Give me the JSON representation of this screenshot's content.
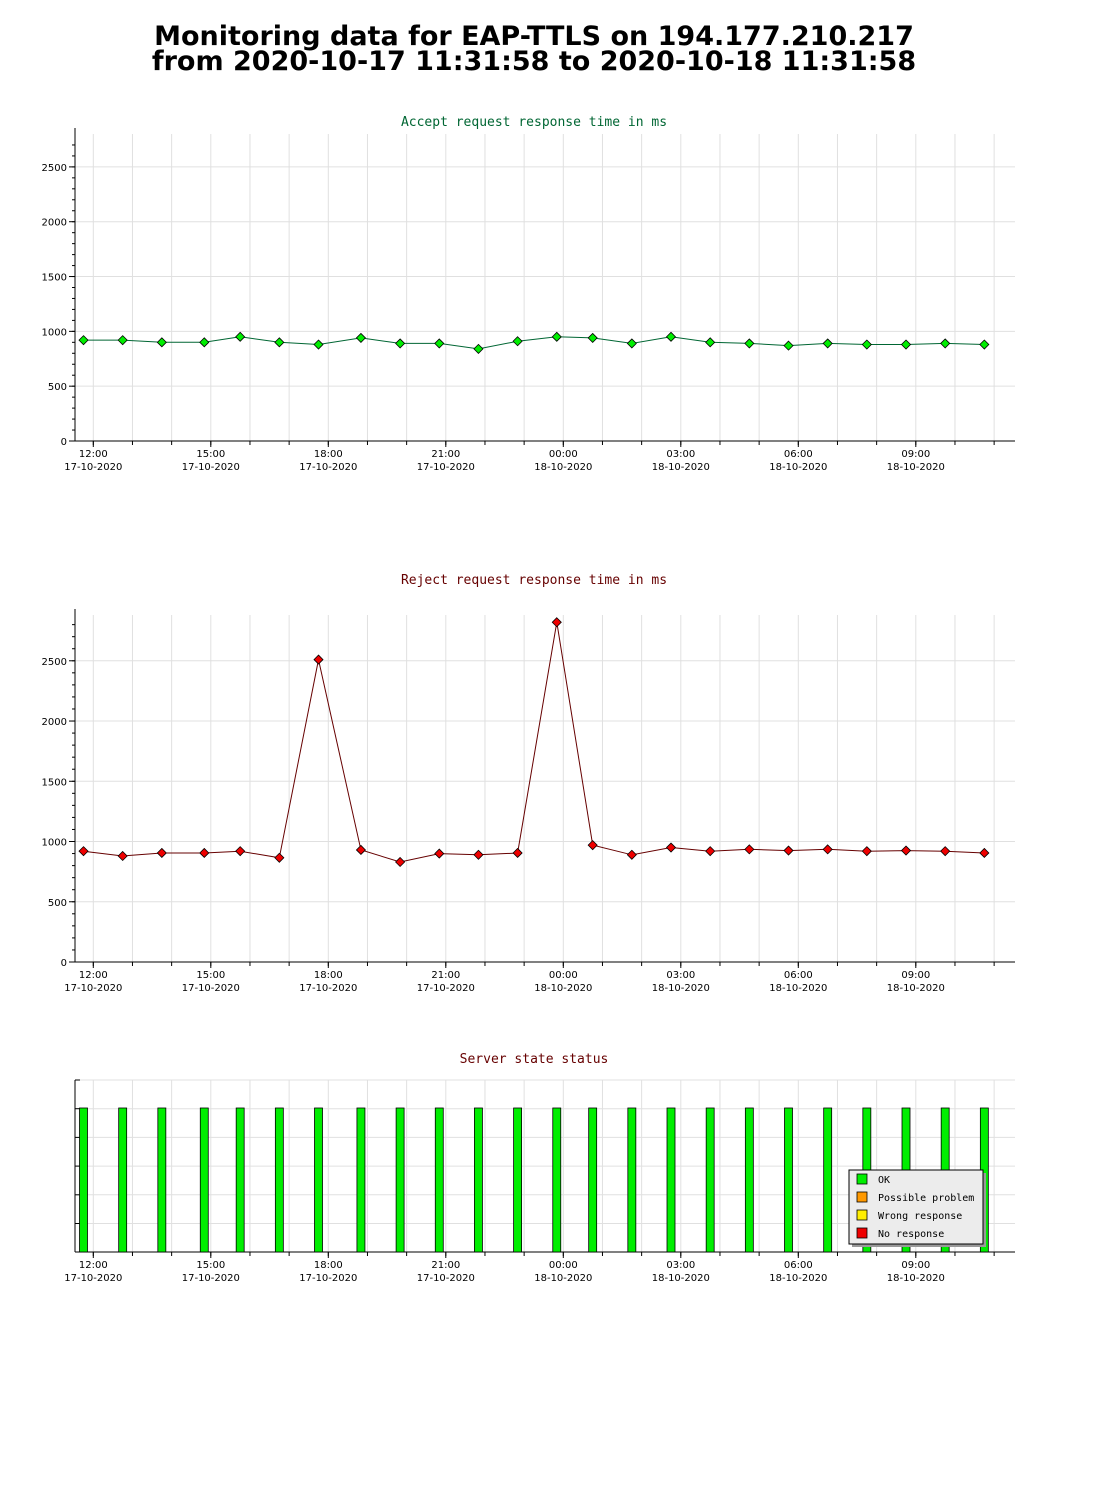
{
  "page": {
    "title_line1": "Monitoring data for EAP-TTLS on 194.177.210.217",
    "title_line2": "from 2020-10-17 11:31:58 to 2020-10-18 11:31:58"
  },
  "colors": {
    "accept_title": "#006633",
    "reject_title": "#660000",
    "status_title": "#660000",
    "accept_line": "#006633",
    "accept_marker": "#00ee00",
    "reject_line": "#660000",
    "reject_marker": "#ee0000",
    "ok": "#00ee00",
    "possible_problem": "#ff9900",
    "wrong_response": "#ffee00",
    "no_response": "#ee0000",
    "grid": "#e0e0e0"
  },
  "chart_data": [
    {
      "type": "line",
      "title": "Accept request response time in ms",
      "x_axis": "time",
      "x_start": "2020-10-17 11:31:58",
      "x_end": "2020-10-18 11:31:58",
      "ylim": [
        0,
        2800
      ],
      "yticks": [
        0,
        500,
        1000,
        1500,
        2000,
        2500
      ],
      "xticks": [
        {
          "time": "12:00",
          "date": "17-10-2020"
        },
        {
          "time": "15:00",
          "date": "17-10-2020"
        },
        {
          "time": "18:00",
          "date": "17-10-2020"
        },
        {
          "time": "21:00",
          "date": "17-10-2020"
        },
        {
          "time": "00:00",
          "date": "18-10-2020"
        },
        {
          "time": "03:00",
          "date": "18-10-2020"
        },
        {
          "time": "06:00",
          "date": "18-10-2020"
        },
        {
          "time": "09:00",
          "date": "18-10-2020"
        }
      ],
      "grid": true,
      "series": [
        {
          "x": [
            "2020-10-17 11:45",
            "2020-10-17 12:45",
            "2020-10-17 13:45",
            "2020-10-17 14:50",
            "2020-10-17 15:45",
            "2020-10-17 16:45",
            "2020-10-17 17:45",
            "2020-10-17 18:50",
            "2020-10-17 19:50",
            "2020-10-17 20:50",
            "2020-10-17 21:50",
            "2020-10-17 22:50",
            "2020-10-17 23:50",
            "2020-10-18 00:45",
            "2020-10-18 01:45",
            "2020-10-18 02:45",
            "2020-10-18 03:45",
            "2020-10-18 04:45",
            "2020-10-18 05:45",
            "2020-10-18 06:45",
            "2020-10-18 07:45",
            "2020-10-18 08:45",
            "2020-10-18 09:45",
            "2020-10-18 10:45"
          ],
          "values": [
            920,
            920,
            900,
            900,
            950,
            900,
            880,
            940,
            890,
            890,
            840,
            910,
            950,
            940,
            890,
            950,
            900,
            890,
            870,
            890,
            880,
            880,
            890,
            880
          ]
        }
      ]
    },
    {
      "type": "line",
      "title": "Reject request response time in ms",
      "x_axis": "time",
      "x_start": "2020-10-17 11:31:58",
      "x_end": "2020-10-18 11:31:58",
      "ylim": [
        0,
        2880
      ],
      "yticks": [
        0,
        500,
        1000,
        1500,
        2000,
        2500
      ],
      "xticks": [
        {
          "time": "12:00",
          "date": "17-10-2020"
        },
        {
          "time": "15:00",
          "date": "17-10-2020"
        },
        {
          "time": "18:00",
          "date": "17-10-2020"
        },
        {
          "time": "21:00",
          "date": "17-10-2020"
        },
        {
          "time": "00:00",
          "date": "18-10-2020"
        },
        {
          "time": "03:00",
          "date": "18-10-2020"
        },
        {
          "time": "06:00",
          "date": "18-10-2020"
        },
        {
          "time": "09:00",
          "date": "18-10-2020"
        }
      ],
      "grid": true,
      "series": [
        {
          "x": [
            "2020-10-17 11:45",
            "2020-10-17 12:45",
            "2020-10-17 13:45",
            "2020-10-17 14:50",
            "2020-10-17 15:45",
            "2020-10-17 16:45",
            "2020-10-17 17:45",
            "2020-10-17 18:50",
            "2020-10-17 19:50",
            "2020-10-17 20:50",
            "2020-10-17 21:50",
            "2020-10-17 22:50",
            "2020-10-17 23:50",
            "2020-10-18 00:45",
            "2020-10-18 01:45",
            "2020-10-18 02:45",
            "2020-10-18 03:45",
            "2020-10-18 04:45",
            "2020-10-18 05:45",
            "2020-10-18 06:45",
            "2020-10-18 07:45",
            "2020-10-18 08:45",
            "2020-10-18 09:45",
            "2020-10-18 10:45"
          ],
          "values": [
            920,
            880,
            905,
            905,
            920,
            865,
            2510,
            930,
            830,
            900,
            890,
            905,
            2820,
            970,
            890,
            950,
            920,
            935,
            925,
            935,
            920,
            925,
            920,
            905
          ]
        }
      ]
    },
    {
      "type": "bar",
      "title": "Server state status",
      "x_axis": "time",
      "x_start": "2020-10-17 11:31:58",
      "x_end": "2020-10-18 11:31:58",
      "xticks": [
        {
          "time": "12:00",
          "date": "17-10-2020"
        },
        {
          "time": "15:00",
          "date": "17-10-2020"
        },
        {
          "time": "18:00",
          "date": "17-10-2020"
        },
        {
          "time": "21:00",
          "date": "17-10-2020"
        },
        {
          "time": "00:00",
          "date": "18-10-2020"
        },
        {
          "time": "03:00",
          "date": "18-10-2020"
        },
        {
          "time": "06:00",
          "date": "18-10-2020"
        },
        {
          "time": "09:00",
          "date": "18-10-2020"
        }
      ],
      "x": [
        "2020-10-17 11:45",
        "2020-10-17 12:45",
        "2020-10-17 13:45",
        "2020-10-17 14:50",
        "2020-10-17 15:45",
        "2020-10-17 16:45",
        "2020-10-17 17:45",
        "2020-10-17 18:50",
        "2020-10-17 19:50",
        "2020-10-17 20:50",
        "2020-10-17 21:50",
        "2020-10-17 22:50",
        "2020-10-17 23:50",
        "2020-10-18 00:45",
        "2020-10-18 01:45",
        "2020-10-18 02:45",
        "2020-10-18 03:45",
        "2020-10-18 04:45",
        "2020-10-18 05:45",
        "2020-10-18 06:45",
        "2020-10-18 07:45",
        "2020-10-18 08:45",
        "2020-10-18 09:45",
        "2020-10-18 10:45"
      ],
      "states": [
        "OK",
        "OK",
        "OK",
        "OK",
        "OK",
        "OK",
        "OK",
        "OK",
        "OK",
        "OK",
        "OK",
        "OK",
        "OK",
        "OK",
        "OK",
        "OK",
        "OK",
        "OK",
        "OK",
        "OK",
        "OK",
        "OK",
        "OK",
        "OK"
      ],
      "legend_placement": "bottom-right",
      "legend": [
        {
          "label": "OK",
          "color": "#00ee00"
        },
        {
          "label": "Possible problem",
          "color": "#ff9900"
        },
        {
          "label": "Wrong response",
          "color": "#ffee00"
        },
        {
          "label": "No response",
          "color": "#ee0000"
        }
      ]
    }
  ]
}
